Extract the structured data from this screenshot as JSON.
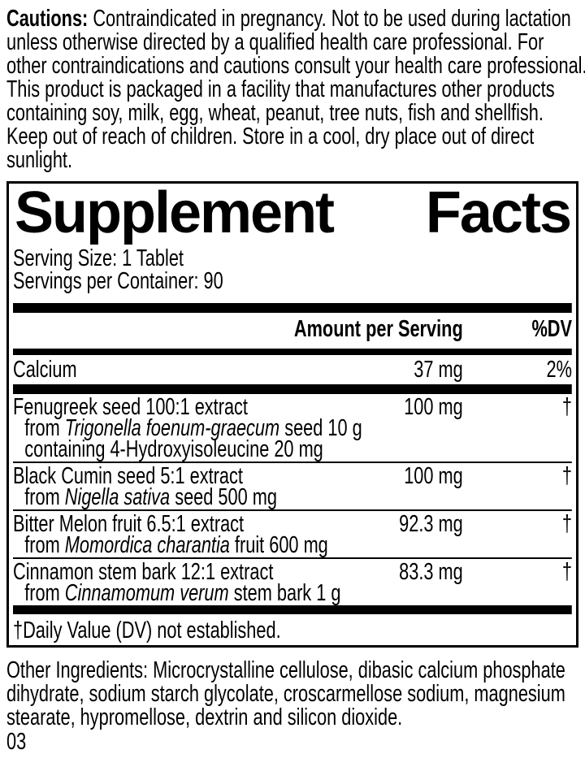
{
  "colors": {
    "text": "#000000",
    "background": "#ffffff"
  },
  "cautions": {
    "label": "Cautions:",
    "lines": [
      "Contraindicated in pregnancy. Not to be used during lactation",
      "unless otherwise directed by a qualified health care professional. For",
      "other contraindications and cautions consult your health care professional.",
      "This product is packaged in a facility that manufactures other products",
      "containing soy, milk, egg, wheat, peanut, tree nuts, fish and shellfish.",
      "Keep out of reach of children. Store in a cool, dry place out of direct",
      "sunlight."
    ]
  },
  "supplement_facts": {
    "title_words": [
      "Supplement",
      "Facts"
    ],
    "serving_size": "Serving Size: 1 Tablet",
    "servings_per_container": "Servings per Container: 90",
    "header": {
      "amount": "Amount per Serving",
      "dv": "%DV"
    },
    "rows": [
      {
        "name": "Calcium",
        "amount": "37 mg",
        "dv": "2%",
        "sub": []
      },
      {
        "name": "Fenugreek seed 100:1 extract",
        "amount": "100 mg",
        "dv": "†",
        "sub": [
          {
            "pre": "from ",
            "italic": "Trigonella foenum-graecum",
            "post": " seed 10 g"
          },
          {
            "pre": "containing 4-Hydroxyisoleucine 20 mg",
            "italic": "",
            "post": ""
          }
        ]
      },
      {
        "name": "Black Cumin seed 5:1 extract",
        "amount": "100 mg",
        "dv": "†",
        "sub": [
          {
            "pre": "from ",
            "italic": "Nigella sativa",
            "post": " seed 500 mg"
          }
        ]
      },
      {
        "name": "Bitter Melon fruit 6.5:1 extract",
        "amount": "92.3 mg",
        "dv": "†",
        "sub": [
          {
            "pre": "from ",
            "italic": "Momordica charantia",
            "post": " fruit 600 mg"
          }
        ]
      },
      {
        "name": "Cinnamon stem bark 12:1 extract",
        "amount": "83.3 mg",
        "dv": "†",
        "sub": [
          {
            "pre": "from ",
            "italic": "Cinnamomum verum",
            "post": " stem bark 1 g"
          }
        ]
      }
    ],
    "footnote": "†Daily Value (DV) not established."
  },
  "other_ingredients": {
    "lines": [
      "Other Ingredients: Microcrystalline cellulose, dibasic calcium phosphate",
      "dihydrate, sodium starch glycolate, croscarmellose sodium, magnesium",
      "stearate, hypromellose, dextrin and silicon dioxide."
    ]
  },
  "footer": {
    "page_number": "03"
  }
}
